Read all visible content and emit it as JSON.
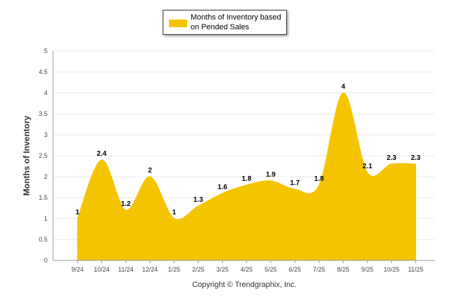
{
  "legend": {
    "label": "Months of Inventory based on Pended Sales"
  },
  "footer": {
    "copyright": "Copyright © Trendgraphix, Inc."
  },
  "colors": {
    "area_fill": "#f5c400",
    "grid": "#e8e8e8",
    "axis_text": "#444444"
  },
  "chart_data": {
    "type": "area",
    "categories": [
      "9/24",
      "10/24",
      "11/24",
      "12/24",
      "1/25",
      "2/25",
      "3/25",
      "4/25",
      "5/25",
      "6/25",
      "7/25",
      "8/25",
      "9/25",
      "10/25",
      "11/25"
    ],
    "series": [
      {
        "name": "Months of Inventory based on Pended Sales",
        "values": [
          1,
          2.4,
          1.2,
          2,
          1,
          1.3,
          1.6,
          1.8,
          1.9,
          1.7,
          1.8,
          4,
          2.1,
          2.3,
          2.3
        ]
      }
    ],
    "ylabel": "Months of Inventory",
    "ylim": [
      0,
      5
    ],
    "yticks": [
      "0",
      "0.5",
      "1",
      "1.5",
      "2",
      "2.5",
      "3",
      "3.5",
      "4",
      "4.5",
      "5"
    ],
    "grid": true,
    "legend_position": "top-center",
    "smooth": true
  }
}
